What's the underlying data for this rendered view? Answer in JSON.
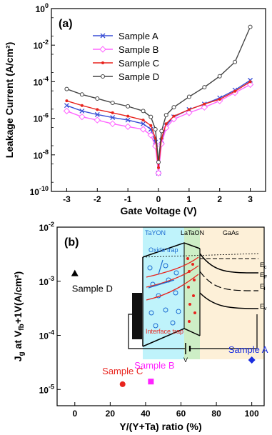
{
  "chart_data": [
    {
      "type": "line",
      "panel_label": "(a)",
      "xlabel": "Gate Voltage (V)",
      "ylabel": "Leakage Current (A/cm²)",
      "xlim": [
        -3.5,
        3.5
      ],
      "ylim_log10": [
        -10,
        0
      ],
      "y_scale": "log",
      "xticks": [
        -3,
        -2,
        -1,
        0,
        1,
        2,
        3
      ],
      "yticks": [
        {
          "exp": -10,
          "label": "10",
          "sup": "-10"
        },
        {
          "exp": -8,
          "label": "10",
          "sup": "-8"
        },
        {
          "exp": -6,
          "label": "10",
          "sup": "-6"
        },
        {
          "exp": -4,
          "label": "10",
          "sup": "-4"
        },
        {
          "exp": -2,
          "label": "10",
          "sup": "-2"
        },
        {
          "exp": 0,
          "label": "10",
          "sup": "0"
        }
      ],
      "legend_position": "top-left",
      "x": [
        -3,
        -2.5,
        -2,
        -1.5,
        -1,
        -0.5,
        -0.25,
        -0.1,
        0,
        0.1,
        0.25,
        0.5,
        1,
        1.5,
        2,
        2.5,
        3
      ],
      "series": [
        {
          "name": "Sample A",
          "color": "#3a4fd6",
          "marker": "x",
          "values": [
            5e-06,
            2.5e-06,
            1.6e-06,
            1.1e-06,
            8e-07,
            5e-07,
            2.5e-07,
            5e-08,
            1e-09,
            6e-08,
            4e-07,
            1.2e-06,
            3e-06,
            6e-06,
            1.3e-05,
            3.5e-05,
            0.00012
          ]
        },
        {
          "name": "Sample B",
          "color": "#ff66ff",
          "marker": "diamond",
          "values": [
            2.5e-06,
            1.2e-06,
            8e-07,
            5e-07,
            3.5e-07,
            2.5e-07,
            1.2e-07,
            3e-08,
            1e-09,
            4e-08,
            3e-07,
            9e-07,
            2e-06,
            4e-06,
            9e-06,
            2.5e-05,
            7e-05
          ]
        },
        {
          "name": "Sample C",
          "color": "#e8241e",
          "marker": "dot",
          "values": [
            9e-06,
            5e-06,
            3e-06,
            2e-06,
            1.3e-06,
            8e-07,
            4e-07,
            8e-08,
            2e-09,
            8e-08,
            5e-07,
            1.3e-06,
            3e-06,
            6e-06,
            1.1e-05,
            3e-05,
            0.0001
          ]
        },
        {
          "name": "Sample D",
          "color": "#444444",
          "marker": "open-circle",
          "values": [
            4e-05,
            2e-05,
            1.2e-05,
            7e-06,
            4.5e-06,
            2.5e-06,
            1.2e-06,
            2.5e-07,
            4e-09,
            2e-07,
            1.5e-06,
            4e-06,
            1.5e-05,
            5e-05,
            0.0002,
            0.0012,
            0.1
          ]
        }
      ]
    },
    {
      "type": "scatter",
      "panel_label": "(b)",
      "xlabel": "Y/(Y+Ta) ratio (%)",
      "ylabel": "J",
      "ylabel_sub1": "g",
      "ylabel_mid": " at V",
      "ylabel_sub2": "fb",
      "ylabel_end": "+1V(A/cm²)",
      "xlim": [
        -10,
        107
      ],
      "ylim_log10": [
        -5.3,
        -2
      ],
      "y_scale": "log",
      "xticks": [
        0,
        20,
        40,
        60,
        80,
        100
      ],
      "yticks": [
        {
          "exp": -5,
          "label": "10",
          "sup": "-5"
        },
        {
          "exp": -4,
          "label": "10",
          "sup": "-4"
        },
        {
          "exp": -3,
          "label": "10",
          "sup": "-3"
        },
        {
          "exp": -2,
          "label": "10",
          "sup": "-2"
        }
      ],
      "points": [
        {
          "label": "Sample D",
          "x": 0,
          "y": 0.0014,
          "color": "#000000",
          "marker": "triangle"
        },
        {
          "label": "Sample C",
          "x": 27,
          "y": 1.25e-05,
          "color": "#e8241e",
          "marker": "circle"
        },
        {
          "label": "Sample B",
          "x": 43,
          "y": 1.4e-05,
          "color": "#ff22ff",
          "marker": "square"
        },
        {
          "label": "Sample A",
          "x": 100,
          "y": 3.5e-05,
          "color": "#1a2ee0",
          "marker": "diamond"
        }
      ],
      "inset": {
        "layer_labels": [
          "TaYON",
          "LaTaON",
          "GaAs"
        ],
        "oxide_trap": "Oxide trap",
        "interface_trap": "Interface trap",
        "band_labels": [
          "E",
          "E",
          "E",
          "E"
        ],
        "band_subs": [
          "c",
          "F",
          "i",
          "v"
        ],
        "bias_label": "V",
        "colors": {
          "tayon": "#bff3fb",
          "latson": "#cdeec6",
          "gaas": "#fdf0d8"
        }
      }
    }
  ]
}
